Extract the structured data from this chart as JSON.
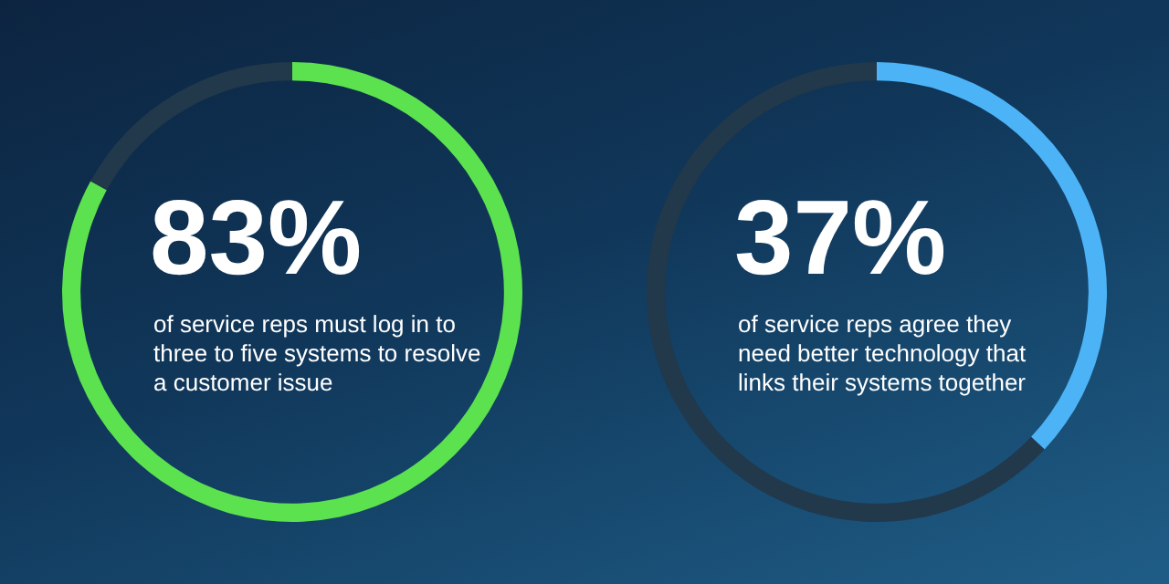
{
  "chart_data": [
    {
      "type": "donut",
      "categories": [
        null,
        null
      ],
      "values": [
        83,
        17
      ],
      "colors": [
        "#5ce14f",
        "#22384b"
      ],
      "title": "83%",
      "subtitle": "of service reps must log in to three to five systems to resolve a customer issue"
    },
    {
      "type": "donut",
      "categories": [
        null,
        null
      ],
      "values": [
        37,
        63
      ],
      "colors": [
        "#4db3f7",
        "#22384b"
      ],
      "title": "37%",
      "subtitle": "of service reps agree they need better technology that links their systems together"
    }
  ]
}
